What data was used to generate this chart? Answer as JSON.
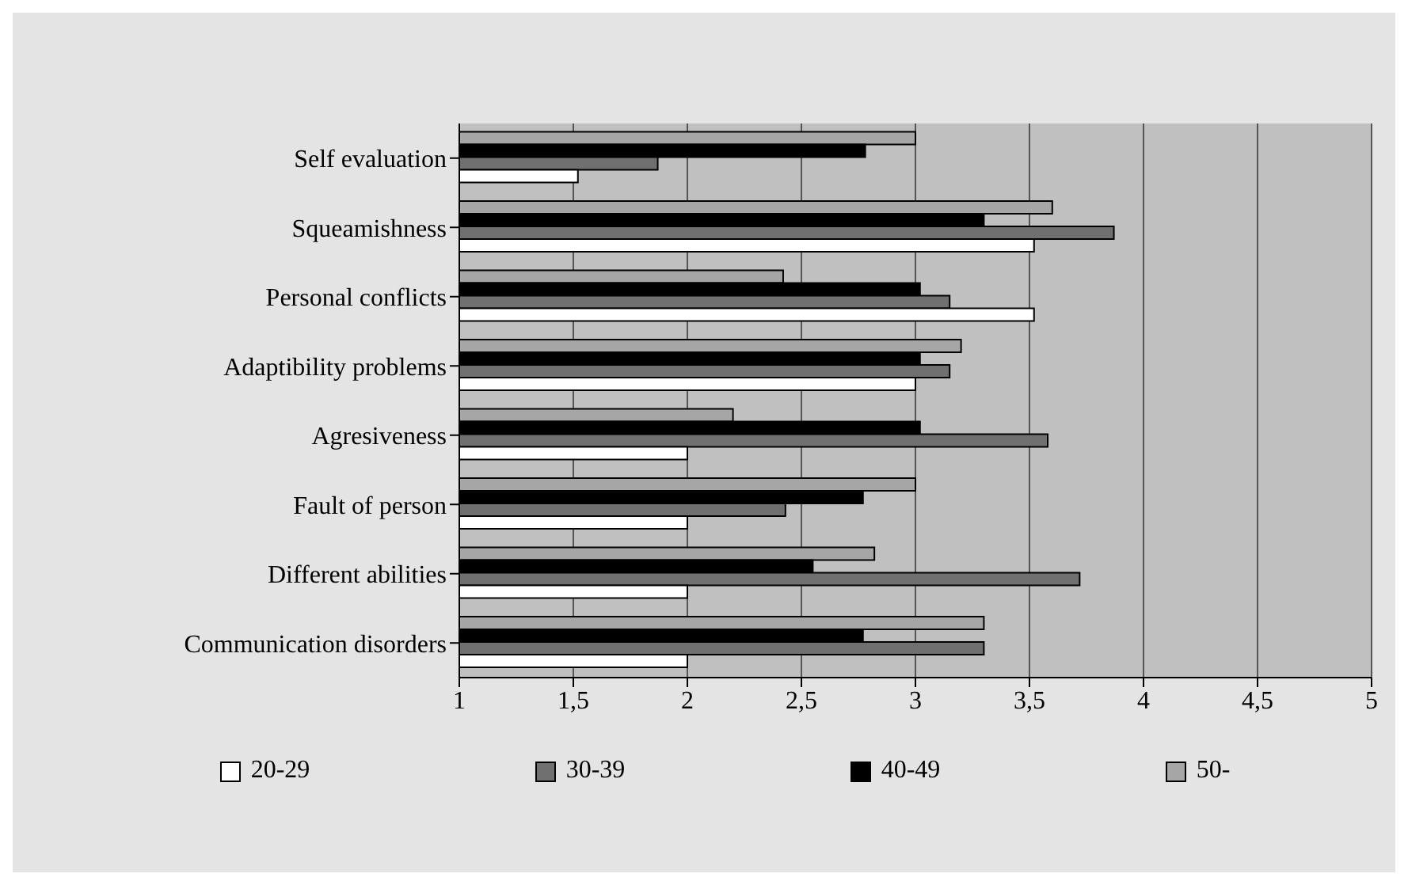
{
  "chart_data": {
    "type": "bar",
    "orientation": "horizontal",
    "categories": [
      "Self evaluation",
      "Squeamishness",
      "Personal conflicts",
      "Adaptibility problems",
      "Agresiveness",
      "Fault of person",
      "Different abilities",
      "Communication disorders"
    ],
    "series": [
      {
        "name": "20-29",
        "color": "#ffffff",
        "values": [
          1.52,
          3.52,
          3.52,
          3.0,
          2.0,
          2.0,
          2.0,
          2.0
        ]
      },
      {
        "name": "30-39",
        "color": "#707070",
        "values": [
          1.87,
          3.87,
          3.15,
          3.15,
          3.58,
          2.43,
          3.72,
          3.3
        ]
      },
      {
        "name": "40-49",
        "color": "#000000",
        "values": [
          2.78,
          3.3,
          3.02,
          3.02,
          3.02,
          2.77,
          2.55,
          2.77
        ]
      },
      {
        "name": "50-",
        "color": "#a6a6a6",
        "values": [
          3.0,
          3.6,
          2.42,
          3.2,
          2.2,
          3.0,
          2.82,
          3.3
        ]
      }
    ],
    "xlim": [
      1,
      5
    ],
    "xticks": [
      {
        "value": 1,
        "label": "1"
      },
      {
        "value": 1.5,
        "label": "1,5"
      },
      {
        "value": 2,
        "label": "2"
      },
      {
        "value": 2.5,
        "label": "2,5"
      },
      {
        "value": 3,
        "label": "3"
      },
      {
        "value": 3.5,
        "label": "3,5"
      },
      {
        "value": 4,
        "label": "4"
      },
      {
        "value": 4.5,
        "label": "4,5"
      },
      {
        "value": 5,
        "label": "5"
      }
    ],
    "grid": "x",
    "legend": "bottom"
  }
}
